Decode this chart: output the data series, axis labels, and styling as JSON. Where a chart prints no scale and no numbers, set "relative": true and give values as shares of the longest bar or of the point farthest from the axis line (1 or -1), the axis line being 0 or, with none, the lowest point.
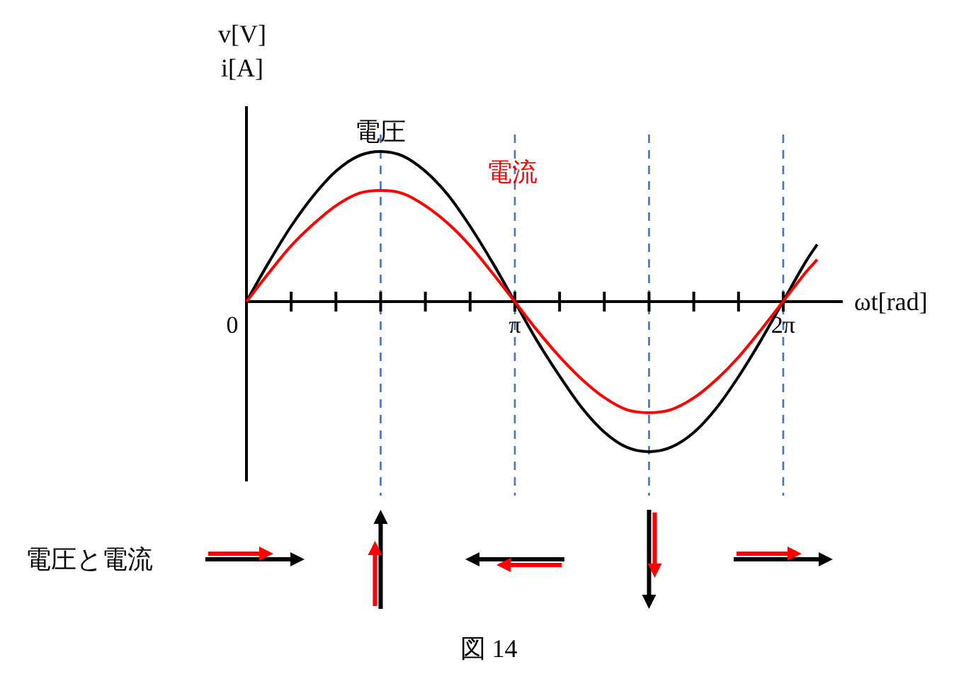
{
  "chart_data": {
    "type": "line",
    "relative": true,
    "xlabel": "ωt[rad]",
    "ylabel": "v[V]\ni[A]",
    "xlim": [
      0,
      6.98
    ],
    "xticks": [
      {
        "value": 0,
        "label": "0"
      },
      {
        "value": 0.5236,
        "label": null
      },
      {
        "value": 1.0472,
        "label": null
      },
      {
        "value": 1.5708,
        "label": null
      },
      {
        "value": 2.0944,
        "label": null
      },
      {
        "value": 2.618,
        "label": null
      },
      {
        "value": 3.1416,
        "label": "π"
      },
      {
        "value": 3.6652,
        "label": null
      },
      {
        "value": 4.1888,
        "label": null
      },
      {
        "value": 4.7124,
        "label": null
      },
      {
        "value": 5.236,
        "label": null
      },
      {
        "value": 5.7596,
        "label": null
      },
      {
        "value": 6.2832,
        "label": "2π"
      }
    ],
    "x": [
      0,
      0.26,
      0.52,
      0.79,
      1.05,
      1.31,
      1.57,
      1.83,
      2.09,
      2.36,
      2.62,
      2.88,
      3.14,
      3.4,
      3.67,
      3.93,
      4.19,
      4.45,
      4.71,
      4.97,
      5.24,
      5.5,
      5.76,
      6.02,
      6.28,
      6.54,
      6.68
    ],
    "series": [
      {
        "name": "電圧",
        "color": "#000000",
        "values": [
          0,
          0.26,
          0.5,
          0.71,
          0.87,
          0.97,
          1,
          0.97,
          0.87,
          0.71,
          0.5,
          0.26,
          0,
          -0.26,
          -0.5,
          -0.71,
          -0.87,
          -0.97,
          -1,
          -0.97,
          -0.87,
          -0.71,
          -0.5,
          -0.26,
          0,
          0.26,
          0.38
        ]
      },
      {
        "name": "電流",
        "color": "#ff0000",
        "values": [
          0,
          0.19,
          0.37,
          0.52,
          0.64,
          0.72,
          0.74,
          0.72,
          0.64,
          0.52,
          0.37,
          0.19,
          0,
          -0.19,
          -0.37,
          -0.52,
          -0.64,
          -0.72,
          -0.74,
          -0.72,
          -0.64,
          -0.52,
          -0.37,
          -0.19,
          0,
          0.19,
          0.28
        ]
      }
    ],
    "ref_lines": [
      {
        "axis": "x",
        "value": 1.5708,
        "color": "#4472c4",
        "line_style": "dashed"
      },
      {
        "axis": "x",
        "value": 3.1416,
        "color": "#4472c4",
        "line_style": "dashed"
      },
      {
        "axis": "x",
        "value": 4.7124,
        "color": "#4472c4",
        "line_style": "dashed"
      },
      {
        "axis": "x",
        "value": 6.2832,
        "color": "#4472c4",
        "line_style": "dashed"
      }
    ],
    "annotations": [
      "電圧と電流",
      "図 14"
    ]
  }
}
